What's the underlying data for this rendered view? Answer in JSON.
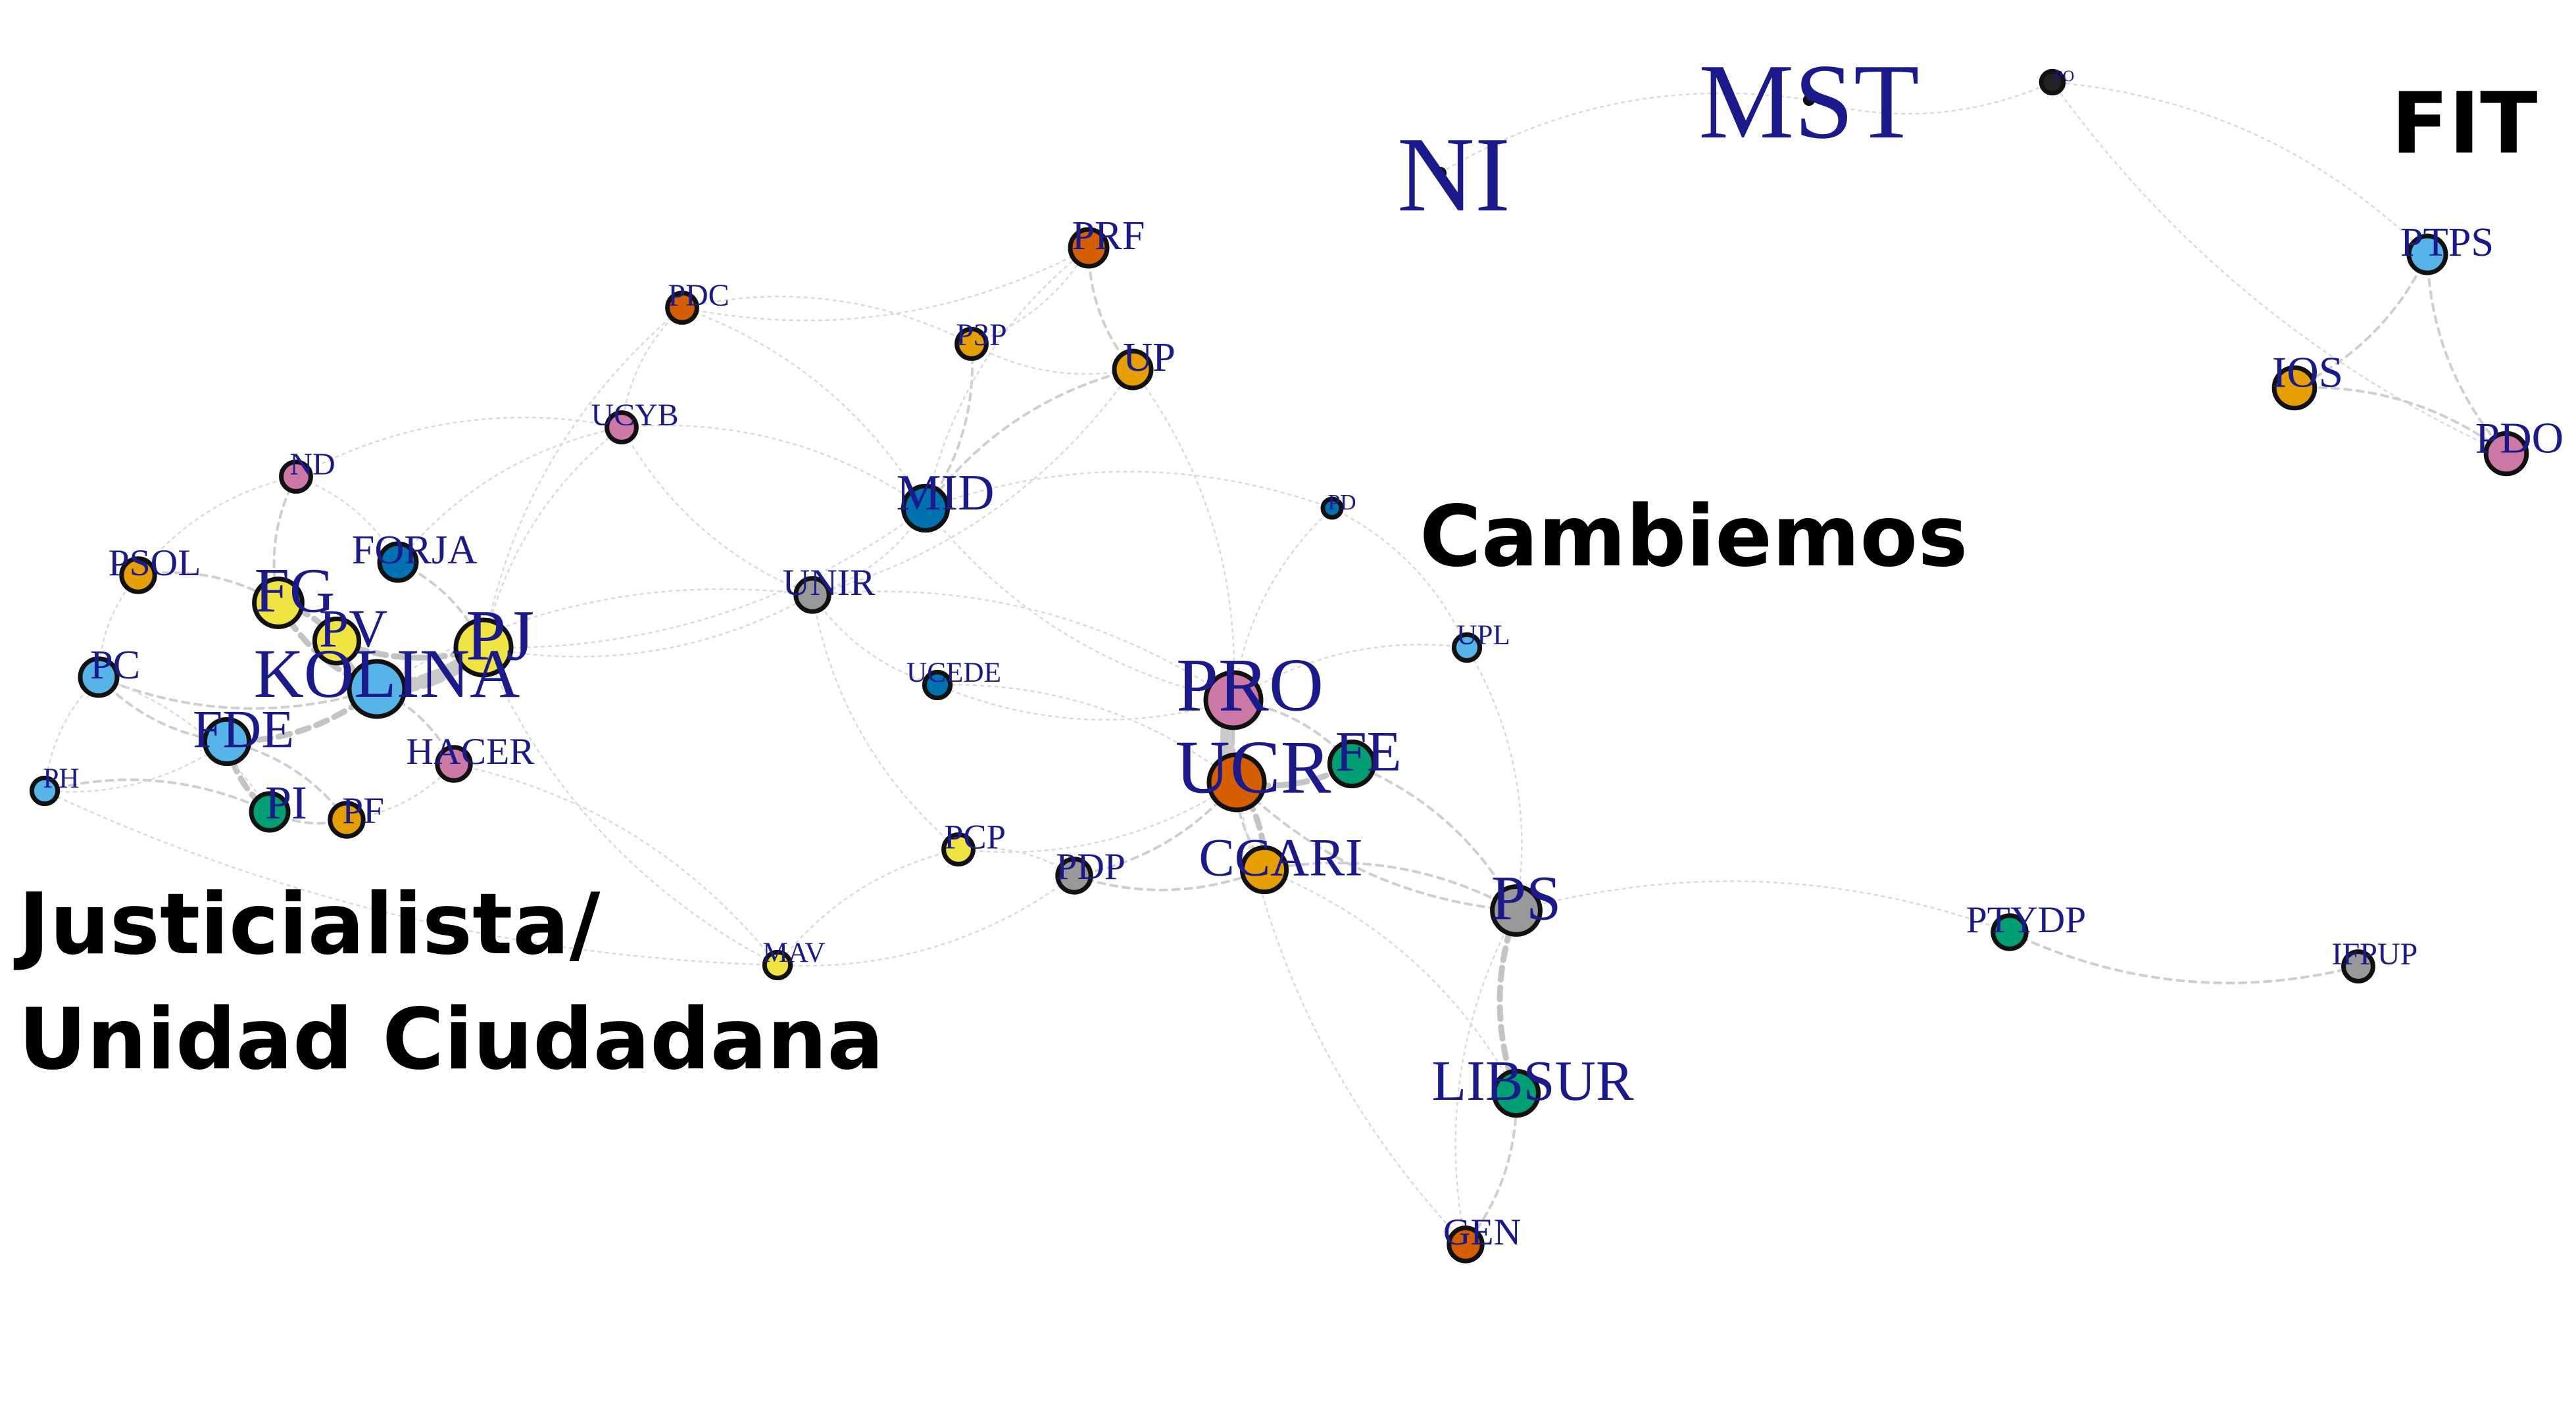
{
  "colors": {
    "edge": "#c8c8c8",
    "node_outline": "#111111",
    "label": "#1a1a8c",
    "cluster_label": "#000000",
    "yellow": "#f0e442",
    "orange": "#e69f00",
    "vermillion": "#d55e00",
    "sky": "#56b4e9",
    "blue": "#0072b2",
    "green": "#009e73",
    "pink": "#cc79a7",
    "gray": "#999999",
    "black": "#222222"
  },
  "clusters": [
    {
      "id": "justicialista",
      "lines": [
        "Justicialista/",
        "Unidad Ciudadana"
      ]
    },
    {
      "id": "cambiemos",
      "lines": [
        "Cambiemos"
      ]
    },
    {
      "id": "fit",
      "lines": [
        "FIT"
      ]
    }
  ],
  "nodes": [
    {
      "id": "NI",
      "label": "NI",
      "color": "black",
      "size": 0.2,
      "label_size": 3.4
    },
    {
      "id": "MST",
      "label": "MST",
      "color": "black",
      "size": 0.2,
      "label_size": 3.4
    },
    {
      "id": "PO",
      "label": "PO",
      "color": "black",
      "size": 0.6,
      "label_size": 0.5
    },
    {
      "id": "PTPS",
      "label": "PTPS",
      "color": "sky",
      "size": 1.0,
      "label_size": 1.3
    },
    {
      "id": "IOS",
      "label": "IOS",
      "color": "orange",
      "size": 1.1,
      "label_size": 1.4
    },
    {
      "id": "PDO",
      "label": "PDO",
      "color": "pink",
      "size": 1.1,
      "label_size": 1.4
    },
    {
      "id": "PRF",
      "label": "PRF",
      "color": "vermillion",
      "size": 1.0,
      "label_size": 1.3
    },
    {
      "id": "PDC",
      "label": "PDC",
      "color": "vermillion",
      "size": 0.8,
      "label_size": 1.0
    },
    {
      "id": "P3P",
      "label": "P3P",
      "color": "orange",
      "size": 0.8,
      "label_size": 1.0
    },
    {
      "id": "UP",
      "label": "UP",
      "color": "orange",
      "size": 1.0,
      "label_size": 1.3
    },
    {
      "id": "UCYB",
      "label": "UCYB",
      "color": "pink",
      "size": 0.8,
      "label_size": 1.0
    },
    {
      "id": "MID",
      "label": "MID",
      "color": "blue",
      "size": 1.2,
      "label_size": 1.6
    },
    {
      "id": "PD",
      "label": "PD",
      "color": "blue",
      "size": 0.5,
      "label_size": 0.7
    },
    {
      "id": "ND",
      "label": "ND",
      "color": "pink",
      "size": 0.8,
      "label_size": 1.0
    },
    {
      "id": "PSOL",
      "label": "PSOL",
      "color": "orange",
      "size": 0.9,
      "label_size": 1.2
    },
    {
      "id": "FORJA",
      "label": "FORJA",
      "color": "blue",
      "size": 1.0,
      "label_size": 1.3
    },
    {
      "id": "FG",
      "label": "FG",
      "color": "yellow",
      "size": 1.3,
      "label_size": 2.0
    },
    {
      "id": "PV",
      "label": "PV",
      "color": "yellow",
      "size": 1.2,
      "label_size": 1.7
    },
    {
      "id": "PJ",
      "label": "PJ",
      "color": "yellow",
      "size": 1.5,
      "label_size": 2.3
    },
    {
      "id": "KOLINA",
      "label": "KOLINA",
      "color": "sky",
      "size": 1.5,
      "label_size": 2.2
    },
    {
      "id": "PC",
      "label": "PC",
      "color": "sky",
      "size": 1.0,
      "label_size": 1.3
    },
    {
      "id": "FDE",
      "label": "FDE",
      "color": "sky",
      "size": 1.2,
      "label_size": 1.7
    },
    {
      "id": "HACER",
      "label": "HACER",
      "color": "pink",
      "size": 0.9,
      "label_size": 1.2
    },
    {
      "id": "PH",
      "label": "PH",
      "color": "sky",
      "size": 0.7,
      "label_size": 0.9
    },
    {
      "id": "PI",
      "label": "PI",
      "color": "green",
      "size": 1.0,
      "label_size": 1.5
    },
    {
      "id": "PF",
      "label": "PF",
      "color": "orange",
      "size": 0.9,
      "label_size": 1.2
    },
    {
      "id": "UNIR",
      "label": "UNIR",
      "color": "gray",
      "size": 0.9,
      "label_size": 1.2
    },
    {
      "id": "UCEDE",
      "label": "UCEDE",
      "color": "blue",
      "size": 0.7,
      "label_size": 0.9
    },
    {
      "id": "PRO",
      "label": "PRO",
      "color": "pink",
      "size": 1.5,
      "label_size": 2.4
    },
    {
      "id": "UCR",
      "label": "UCR",
      "color": "vermillion",
      "size": 1.5,
      "label_size": 2.4
    },
    {
      "id": "FE",
      "label": "FE",
      "color": "green",
      "size": 1.2,
      "label_size": 1.8
    },
    {
      "id": "UPL",
      "label": "UPL",
      "color": "sky",
      "size": 0.7,
      "label_size": 0.9
    },
    {
      "id": "PCP",
      "label": "PCP",
      "color": "yellow",
      "size": 0.8,
      "label_size": 1.1
    },
    {
      "id": "PDP",
      "label": "PDP",
      "color": "gray",
      "size": 0.9,
      "label_size": 1.2
    },
    {
      "id": "CCARI",
      "label": "CCARI",
      "color": "orange",
      "size": 1.2,
      "label_size": 1.7
    },
    {
      "id": "PS",
      "label": "PS",
      "color": "gray",
      "size": 1.3,
      "label_size": 2.0
    },
    {
      "id": "MAV",
      "label": "MAV",
      "color": "yellow",
      "size": 0.7,
      "label_size": 0.9
    },
    {
      "id": "LIBSUR",
      "label": "LIBSUR",
      "color": "green",
      "size": 1.2,
      "label_size": 1.8
    },
    {
      "id": "GEN",
      "label": "GEN",
      "color": "vermillion",
      "size": 0.9,
      "label_size": 1.2
    },
    {
      "id": "PTYDP",
      "label": "PTYDP",
      "color": "green",
      "size": 0.9,
      "label_size": 1.2
    },
    {
      "id": "IFPUP",
      "label": "IFPUP",
      "color": "gray",
      "size": 0.8,
      "label_size": 1.0
    }
  ],
  "edges": [
    {
      "from": "NI",
      "to": "MST",
      "weight": 0.5
    },
    {
      "from": "MST",
      "to": "PO",
      "weight": 0.5
    },
    {
      "from": "PO",
      "to": "PTPS",
      "weight": 0.5
    },
    {
      "from": "PO",
      "to": "PDO",
      "weight": 0.5
    },
    {
      "from": "PTPS",
      "to": "IOS",
      "weight": 2
    },
    {
      "from": "PTPS",
      "to": "PDO",
      "weight": 2
    },
    {
      "from": "IOS",
      "to": "PDO",
      "weight": 2
    },
    {
      "from": "PTYDP",
      "to": "IFPUP",
      "weight": 2
    },
    {
      "from": "PJ",
      "to": "KOLINA",
      "weight": 4
    },
    {
      "from": "PV",
      "to": "PJ",
      "weight": 3
    },
    {
      "from": "FG",
      "to": "PV",
      "weight": 3
    },
    {
      "from": "FG",
      "to": "KOLINA",
      "weight": 3
    },
    {
      "from": "KOLINA",
      "to": "FDE",
      "weight": 3
    },
    {
      "from": "FDE",
      "to": "PI",
      "weight": 3
    },
    {
      "from": "KOLINA",
      "to": "HACER",
      "weight": 2
    },
    {
      "from": "PC",
      "to": "FDE",
      "weight": 2
    },
    {
      "from": "PSOL",
      "to": "FG",
      "weight": 2
    },
    {
      "from": "PC",
      "to": "KOLINA",
      "weight": 2
    },
    {
      "from": "PH",
      "to": "PI",
      "weight": 2
    },
    {
      "from": "PI",
      "to": "PF",
      "weight": 2
    },
    {
      "from": "FORJA",
      "to": "PJ",
      "weight": 2
    },
    {
      "from": "ND",
      "to": "FG",
      "weight": 2
    },
    {
      "from": "FDE",
      "to": "PF",
      "weight": 2
    },
    {
      "from": "PV",
      "to": "KOLINA",
      "weight": 3
    },
    {
      "from": "PH",
      "to": "PC",
      "weight": 1
    },
    {
      "from": "PSOL",
      "to": "PC",
      "weight": 1
    },
    {
      "from": "ND",
      "to": "FORJA",
      "weight": 1
    },
    {
      "from": "PJ",
      "to": "UNIR",
      "weight": 1
    },
    {
      "from": "PJ",
      "to": "UCYB",
      "weight": 1
    },
    {
      "from": "PJ",
      "to": "MID",
      "weight": 1
    },
    {
      "from": "PJ",
      "to": "PDC",
      "weight": 1
    },
    {
      "from": "PJ",
      "to": "MAV",
      "weight": 0.5
    },
    {
      "from": "HACER",
      "to": "MAV",
      "weight": 0.5
    },
    {
      "from": "PDC",
      "to": "PRF",
      "weight": 1
    },
    {
      "from": "PDC",
      "to": "P3P",
      "weight": 1
    },
    {
      "from": "PDC",
      "to": "UCYB",
      "weight": 1
    },
    {
      "from": "PDC",
      "to": "MID",
      "weight": 1
    },
    {
      "from": "PRF",
      "to": "UP",
      "weight": 2
    },
    {
      "from": "PRF",
      "to": "P3P",
      "weight": 1
    },
    {
      "from": "P3P",
      "to": "UP",
      "weight": 1
    },
    {
      "from": "P3P",
      "to": "MID",
      "weight": 2
    },
    {
      "from": "UP",
      "to": "MID",
      "weight": 2
    },
    {
      "from": "UCYB",
      "to": "MID",
      "weight": 1
    },
    {
      "from": "UCYB",
      "to": "UNIR",
      "weight": 1
    },
    {
      "from": "MID",
      "to": "UNIR",
      "weight": 1
    },
    {
      "from": "MID",
      "to": "PRO",
      "weight": 1
    },
    {
      "from": "MID",
      "to": "PD",
      "weight": 0.5
    },
    {
      "from": "UNIR",
      "to": "UCEDE",
      "weight": 1
    },
    {
      "from": "UNIR",
      "to": "PRO",
      "weight": 1
    },
    {
      "from": "UCEDE",
      "to": "PRO",
      "weight": 1
    },
    {
      "from": "UCEDE",
      "to": "UCR",
      "weight": 1
    },
    {
      "from": "PRO",
      "to": "UCR",
      "weight": 4
    },
    {
      "from": "PRO",
      "to": "FE",
      "weight": 2
    },
    {
      "from": "UCR",
      "to": "FE",
      "weight": 3
    },
    {
      "from": "UCR",
      "to": "CCARI",
      "weight": 3
    },
    {
      "from": "PRO",
      "to": "CCARI",
      "weight": 2
    },
    {
      "from": "UCR",
      "to": "PDP",
      "weight": 2
    },
    {
      "from": "PDP",
      "to": "CCARI",
      "weight": 2
    },
    {
      "from": "PCP",
      "to": "PDP",
      "weight": 1
    },
    {
      "from": "PCP",
      "to": "UCR",
      "weight": 1
    },
    {
      "from": "CCARI",
      "to": "PS",
      "weight": 2
    },
    {
      "from": "UCR",
      "to": "PS",
      "weight": 2
    },
    {
      "from": "FE",
      "to": "PS",
      "weight": 2
    },
    {
      "from": "PS",
      "to": "LIBSUR",
      "weight": 3
    },
    {
      "from": "LIBSUR",
      "to": "GEN",
      "weight": 2
    },
    {
      "from": "PS",
      "to": "GEN",
      "weight": 1
    },
    {
      "from": "CCARI",
      "to": "LIBSUR",
      "weight": 1
    },
    {
      "from": "UCR",
      "to": "GEN",
      "weight": 0.5
    },
    {
      "from": "PRO",
      "to": "UPL",
      "weight": 1
    },
    {
      "from": "UPL",
      "to": "PD",
      "weight": 1
    },
    {
      "from": "UPL",
      "to": "PS",
      "weight": 0.5
    },
    {
      "from": "PD",
      "to": "PRO",
      "weight": 1
    },
    {
      "from": "UP",
      "to": "PRO",
      "weight": 0.5
    },
    {
      "from": "MAV",
      "to": "PDP",
      "weight": 0.5
    },
    {
      "from": "MAV",
      "to": "PCP",
      "weight": 0.5
    },
    {
      "from": "UNIR",
      "to": "PCP",
      "weight": 0.5
    },
    {
      "from": "PS",
      "to": "PTYDP",
      "weight": 0.5
    },
    {
      "from": "UCYB",
      "to": "ND",
      "weight": 0.5
    },
    {
      "from": "FORJA",
      "to": "UCYB",
      "weight": 0.5
    },
    {
      "from": "PH",
      "to": "MAV",
      "weight": 0.5
    },
    {
      "from": "UP",
      "to": "UNIR",
      "weight": 0.5
    },
    {
      "from": "PRF",
      "to": "MID",
      "weight": 1
    },
    {
      "from": "KOLINA",
      "to": "UNIR",
      "weight": 0.5
    },
    {
      "from": "PF",
      "to": "HACER",
      "weight": 1
    },
    {
      "from": "PSOL",
      "to": "ND",
      "weight": 1
    },
    {
      "from": "PH",
      "to": "FDE",
      "weight": 1
    },
    {
      "from": "PC",
      "to": "PI",
      "weight": 1
    }
  ]
}
